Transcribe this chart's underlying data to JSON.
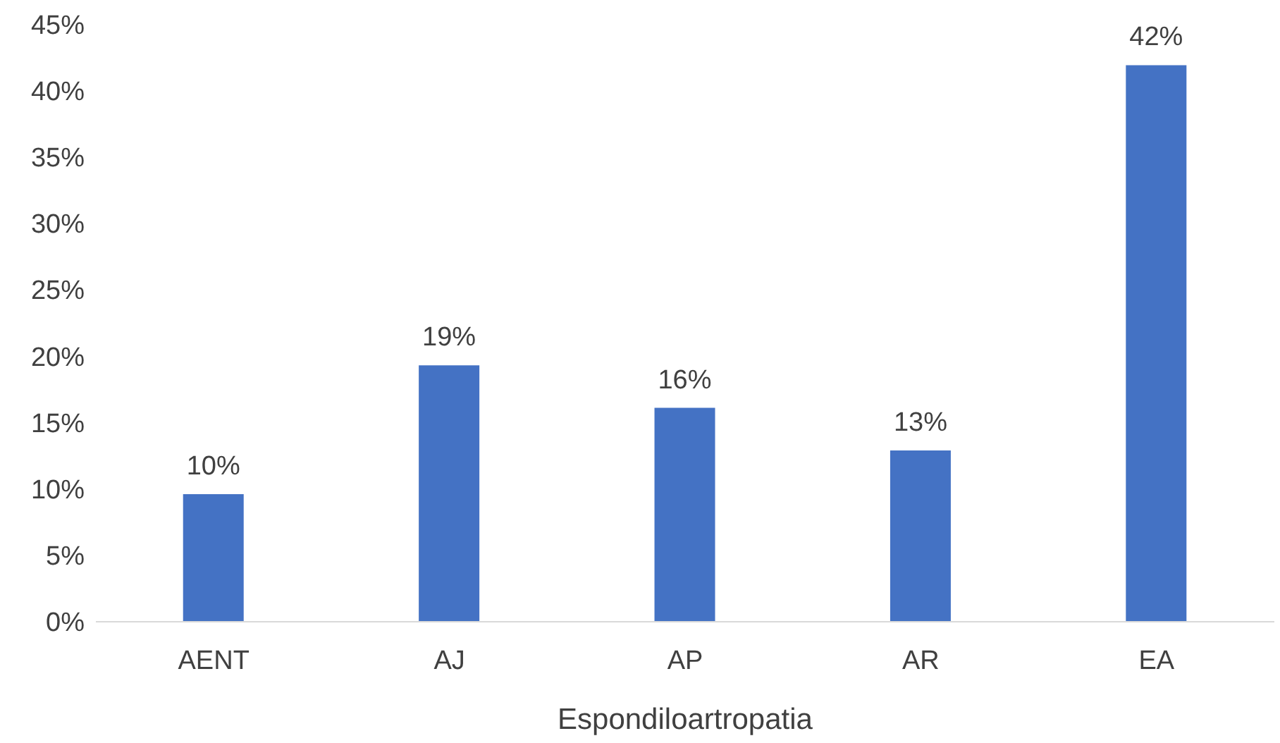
{
  "chart_data": {
    "type": "bar",
    "xlabel": "Espondiloartropatia",
    "categories": [
      "AENT",
      "AJ",
      "AP",
      "AR",
      "EA"
    ],
    "values": [
      9.6,
      19.3,
      16.1,
      12.9,
      41.9
    ],
    "value_labels": [
      "10%",
      "19%",
      "16%",
      "13%",
      "42%"
    ],
    "color": "#4472c4",
    "ylim": [
      0,
      45
    ],
    "yticks": [
      {
        "value": 0,
        "label": "0%"
      },
      {
        "value": 5,
        "label": "5%"
      },
      {
        "value": 10,
        "label": "10%"
      },
      {
        "value": 15,
        "label": "15%"
      },
      {
        "value": 20,
        "label": "20%"
      },
      {
        "value": 25,
        "label": "25%"
      },
      {
        "value": 30,
        "label": "30%"
      },
      {
        "value": 35,
        "label": "35%"
      },
      {
        "value": 40,
        "label": "40%"
      },
      {
        "value": 45,
        "label": "45%"
      }
    ]
  }
}
